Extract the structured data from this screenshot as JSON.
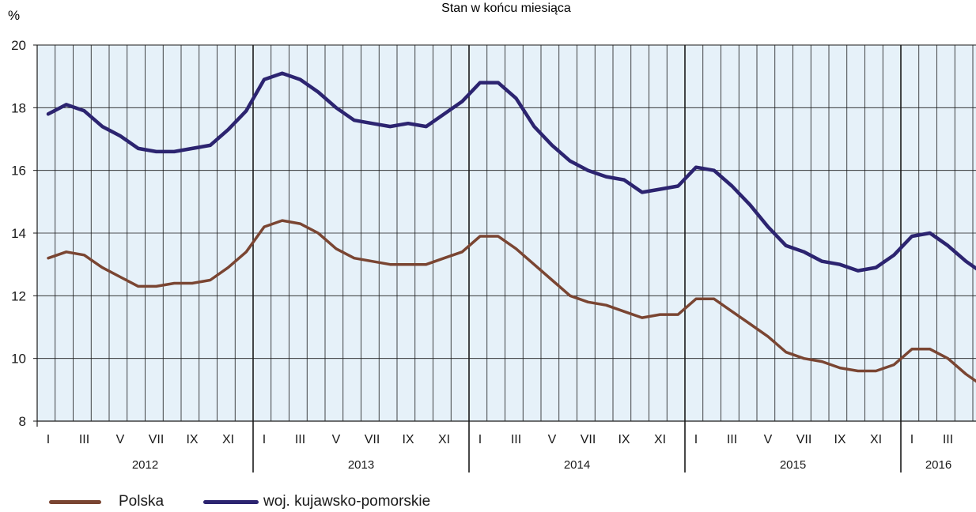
{
  "chart_data": {
    "type": "line",
    "title": "Stan w końcu miesiąca",
    "ylabel": "%",
    "ylim": [
      8,
      20
    ],
    "yticks": [
      8,
      10,
      12,
      14,
      16,
      18,
      20
    ],
    "grid": true,
    "legend_position": "bottom-left",
    "month_labels": [
      "I",
      "",
      "III",
      "",
      "V",
      "",
      "VII",
      "",
      "IX",
      "",
      "XI",
      ""
    ],
    "years": [
      {
        "label": "2012",
        "months": 12
      },
      {
        "label": "2013",
        "months": 12
      },
      {
        "label": "2014",
        "months": 12
      },
      {
        "label": "2015",
        "months": 12
      },
      {
        "label": "2016",
        "months": 5
      }
    ],
    "colors": {
      "plot_background": "#e6f1f9",
      "grid": "#1a1a1a"
    },
    "series": [
      {
        "name": "Polska",
        "color": "#7a4532",
        "values": [
          13.2,
          13.4,
          13.3,
          12.9,
          12.6,
          12.3,
          12.3,
          12.4,
          12.4,
          12.5,
          12.9,
          13.4,
          14.2,
          14.4,
          14.3,
          14.0,
          13.5,
          13.2,
          13.1,
          13.0,
          13.0,
          13.0,
          13.2,
          13.4,
          13.9,
          13.9,
          13.5,
          13.0,
          12.5,
          12.0,
          11.8,
          11.7,
          11.5,
          11.3,
          11.4,
          11.4,
          11.9,
          11.9,
          11.5,
          11.1,
          10.7,
          10.2,
          10.0,
          9.9,
          9.7,
          9.6,
          9.6,
          9.8,
          10.3,
          10.3,
          10.0,
          9.5,
          9.1
        ]
      },
      {
        "name": "woj. kujawsko-pomorskie",
        "color": "#2c2470",
        "values": [
          17.8,
          18.1,
          17.9,
          17.4,
          17.1,
          16.7,
          16.6,
          16.6,
          16.7,
          16.8,
          17.3,
          17.9,
          18.9,
          19.1,
          18.9,
          18.5,
          18.0,
          17.6,
          17.5,
          17.4,
          17.5,
          17.4,
          17.8,
          18.2,
          18.8,
          18.8,
          18.3,
          17.4,
          16.8,
          16.3,
          16.0,
          15.8,
          15.7,
          15.3,
          15.4,
          15.5,
          16.1,
          16.0,
          15.5,
          14.9,
          14.2,
          13.6,
          13.4,
          13.1,
          13.0,
          12.8,
          12.9,
          13.3,
          13.9,
          14.0,
          13.6,
          13.1,
          12.7
        ]
      }
    ]
  }
}
